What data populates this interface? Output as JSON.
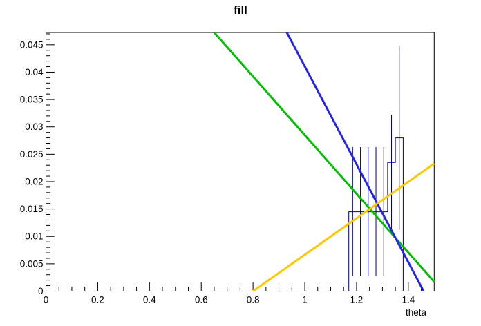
{
  "chart_data": {
    "type": "bar",
    "subtype": "root-histogram-with-fit-lines",
    "title": "fill",
    "xlabel": "theta",
    "ylabel": "",
    "xlim": [
      0,
      1.5
    ],
    "ylim": [
      0,
      0.04725
    ],
    "grid": false,
    "legend": "none",
    "x_major_ticks": [
      0,
      0.2,
      0.4,
      0.6,
      0.8,
      1,
      1.2,
      1.4
    ],
    "x_tick_labels": [
      "0",
      "0.2",
      "0.4",
      "0.6",
      "0.8",
      "1",
      "1.2",
      "1.4"
    ],
    "x_minor_step": 0.05,
    "y_major_ticks": [
      0,
      0.005,
      0.01,
      0.015,
      0.02,
      0.025,
      0.03,
      0.035,
      0.04,
      0.045
    ],
    "y_tick_labels": [
      "0",
      "0.005",
      "0.01",
      "0.015",
      "0.02",
      "0.025",
      "0.03",
      "0.035",
      "0.04",
      "0.045"
    ],
    "y_minor_step": 0.001,
    "histogram": {
      "color": "#00008b",
      "bin_edges": [
        1.17,
        1.2,
        1.23,
        1.26,
        1.29,
        1.32,
        1.35,
        1.38
      ],
      "bin_contents": [
        0.0145,
        0.0145,
        0.0145,
        0.0145,
        0.0145,
        0.0235,
        0.028
      ],
      "error_bars": [
        {
          "x": 1.185,
          "lo": 0.0027,
          "hi": 0.0263
        },
        {
          "x": 1.215,
          "lo": 0.0027,
          "hi": 0.0263
        },
        {
          "x": 1.245,
          "lo": 0.0027,
          "hi": 0.0263
        },
        {
          "x": 1.275,
          "lo": 0.0027,
          "hi": 0.0263
        },
        {
          "x": 1.305,
          "lo": 0.0027,
          "hi": 0.0263
        },
        {
          "x": 1.335,
          "lo": 0.0105,
          "hi": 0.0322
        },
        {
          "x": 1.365,
          "lo": 0.0112,
          "hi": 0.0448
        }
      ]
    },
    "fit_lines": [
      {
        "name": "green-fit-line",
        "color": "#00bf00",
        "x1": 0.65,
        "y1": 0.04725,
        "x2": 1.5,
        "y2": 0.0017
      },
      {
        "name": "blue-fit-line",
        "color": "#2424f0",
        "x1": 0.9306,
        "y1": 0.04725,
        "x2": 1.459,
        "y2": 0.0
      },
      {
        "name": "yellow-fit-line",
        "color": "#fdc800",
        "x1": 0.8,
        "y1": 0.0,
        "x2": 1.5,
        "y2": 0.0233
      }
    ]
  }
}
